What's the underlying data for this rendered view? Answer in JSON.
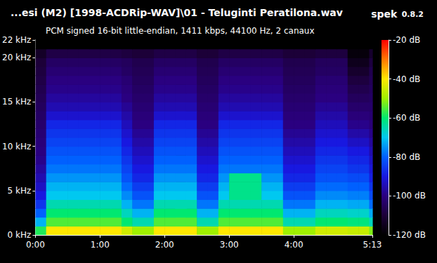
{
  "chart_data": {
    "type": "heatmap",
    "title": "...esi (M2) [1998-ACDRip-WAV]\\01 - Teluginti Peratilona.wav",
    "subtitle": "PCM signed 16-bit little-endian, 1411 kbps, 44100 Hz, 2 canaux",
    "annotations": [
      "spek",
      "0.8.2"
    ],
    "xlim": [
      0,
      313
    ],
    "xticks": [
      {
        "value": 0,
        "label": "0:00"
      },
      {
        "value": 60,
        "label": "1:00"
      },
      {
        "value": 120,
        "label": "2:00"
      },
      {
        "value": 180,
        "label": "3:00"
      },
      {
        "value": 240,
        "label": "4:00"
      },
      {
        "value": 313,
        "label": "5:13"
      }
    ],
    "ylim": [
      0,
      22
    ],
    "yticks": [
      {
        "value": 0,
        "label": "0 kHz"
      },
      {
        "value": 5,
        "label": "5 kHz"
      },
      {
        "value": 10,
        "label": "10 kHz"
      },
      {
        "value": 15,
        "label": "15 kHz"
      },
      {
        "value": 20,
        "label": "20 kHz"
      },
      {
        "value": 22,
        "label": "22 kHz"
      }
    ],
    "grid": false,
    "x_bins": [
      0,
      10,
      20,
      30,
      40,
      50,
      60,
      70,
      80,
      90,
      100,
      110,
      120,
      130,
      140,
      150,
      160,
      170,
      180,
      190,
      200,
      210,
      220,
      230,
      240,
      250,
      260,
      270,
      280,
      290,
      300,
      310,
      313
    ],
    "y_bins": [
      0,
      1,
      2,
      3,
      4,
      5,
      6,
      7,
      8,
      9,
      10,
      11,
      12,
      13,
      14,
      15,
      16,
      17,
      18,
      19,
      20,
      21,
      22
    ],
    "values": [
      [
        -58,
        -40,
        -40,
        -40,
        -40,
        -40,
        -40,
        -40,
        -45,
        -50,
        -50,
        -40,
        -40,
        -40,
        -40,
        -50,
        -50,
        -40,
        -40,
        -40,
        -40,
        -40,
        -40,
        -50,
        -50,
        -50,
        -45,
        -45,
        -45,
        -46,
        -46,
        -52
      ],
      [
        -72,
        -55,
        -55,
        -55,
        -55,
        -55,
        -55,
        -55,
        -60,
        -65,
        -65,
        -55,
        -55,
        -55,
        -55,
        -65,
        -65,
        -55,
        -55,
        -55,
        -55,
        -55,
        -55,
        -65,
        -65,
        -65,
        -60,
        -60,
        -60,
        -61,
        -61,
        -66
      ],
      [
        -80,
        -60,
        -60,
        -60,
        -60,
        -60,
        -60,
        -60,
        -66,
        -72,
        -72,
        -60,
        -60,
        -60,
        -60,
        -72,
        -72,
        -60,
        -60,
        -60,
        -60,
        -60,
        -60,
        -72,
        -72,
        -72,
        -66,
        -66,
        -66,
        -67,
        -67,
        -73
      ],
      [
        -86,
        -65,
        -65,
        -65,
        -65,
        -65,
        -65,
        -65,
        -72,
        -78,
        -78,
        -65,
        -65,
        -65,
        -65,
        -78,
        -78,
        -65,
        -65,
        -65,
        -65,
        -65,
        -65,
        -78,
        -78,
        -78,
        -72,
        -72,
        -72,
        -73,
        -73,
        -79
      ],
      [
        -90,
        -70,
        -70,
        -70,
        -70,
        -70,
        -70,
        -70,
        -76,
        -82,
        -82,
        -70,
        -70,
        -70,
        -70,
        -82,
        -82,
        -70,
        -62,
        -62,
        -62,
        -70,
        -70,
        -82,
        -82,
        -82,
        -76,
        -76,
        -76,
        -77,
        -77,
        -83
      ],
      [
        -93,
        -72,
        -72,
        -72,
        -72,
        -72,
        -72,
        -72,
        -79,
        -85,
        -85,
        -72,
        -72,
        -72,
        -72,
        -85,
        -85,
        -72,
        -62,
        -62,
        -62,
        -72,
        -72,
        -85,
        -85,
        -85,
        -79,
        -79,
        -79,
        -80,
        -80,
        -86
      ],
      [
        -95,
        -75,
        -75,
        -75,
        -75,
        -75,
        -75,
        -75,
        -82,
        -88,
        -88,
        -75,
        -75,
        -75,
        -75,
        -88,
        -88,
        -75,
        -62,
        -62,
        -62,
        -75,
        -75,
        -88,
        -88,
        -88,
        -82,
        -82,
        -82,
        -83,
        -83,
        -89
      ],
      [
        -97,
        -78,
        -78,
        -78,
        -78,
        -78,
        -78,
        -78,
        -84,
        -90,
        -90,
        -78,
        -78,
        -78,
        -78,
        -90,
        -90,
        -78,
        -78,
        -78,
        -78,
        -78,
        -78,
        -90,
        -90,
        -90,
        -84,
        -84,
        -84,
        -86,
        -86,
        -91
      ],
      [
        -99,
        -80,
        -80,
        -80,
        -80,
        -80,
        -80,
        -80,
        -86,
        -92,
        -92,
        -80,
        -80,
        -80,
        -80,
        -92,
        -92,
        -80,
        -80,
        -80,
        -80,
        -80,
        -80,
        -92,
        -92,
        -92,
        -86,
        -86,
        -86,
        -88,
        -88,
        -93
      ],
      [
        -100,
        -82,
        -82,
        -82,
        -82,
        -82,
        -82,
        -82,
        -88,
        -94,
        -94,
        -82,
        -82,
        -82,
        -82,
        -94,
        -94,
        -82,
        -82,
        -82,
        -82,
        -82,
        -82,
        -94,
        -94,
        -94,
        -88,
        -88,
        -88,
        -90,
        -90,
        -95
      ],
      [
        -101,
        -84,
        -84,
        -84,
        -84,
        -84,
        -84,
        -84,
        -90,
        -96,
        -96,
        -84,
        -84,
        -84,
        -84,
        -96,
        -96,
        -84,
        -84,
        -84,
        -84,
        -84,
        -84,
        -96,
        -96,
        -96,
        -90,
        -90,
        -90,
        -93,
        -93,
        -97
      ],
      [
        -102,
        -86,
        -86,
        -86,
        -86,
        -86,
        -86,
        -86,
        -92,
        -98,
        -98,
        -86,
        -86,
        -86,
        -86,
        -98,
        -98,
        -86,
        -86,
        -86,
        -86,
        -86,
        -86,
        -98,
        -98,
        -98,
        -92,
        -92,
        -92,
        -96,
        -96,
        -99
      ],
      [
        -103,
        -88,
        -88,
        -88,
        -88,
        -88,
        -88,
        -88,
        -94,
        -100,
        -100,
        -88,
        -88,
        -88,
        -88,
        -100,
        -100,
        -88,
        -88,
        -88,
        -88,
        -88,
        -88,
        -100,
        -100,
        -100,
        -94,
        -94,
        -94,
        -99,
        -99,
        -101
      ],
      [
        -104,
        -92,
        -92,
        -92,
        -92,
        -92,
        -92,
        -92,
        -96,
        -101,
        -101,
        -92,
        -92,
        -92,
        -92,
        -101,
        -101,
        -92,
        -92,
        -92,
        -92,
        -92,
        -92,
        -101,
        -101,
        -101,
        -96,
        -96,
        -96,
        -101,
        -101,
        -102
      ],
      [
        -105,
        -95,
        -95,
        -95,
        -95,
        -95,
        -95,
        -95,
        -98,
        -102,
        -102,
        -95,
        -95,
        -95,
        -95,
        -102,
        -102,
        -95,
        -95,
        -95,
        -95,
        -95,
        -95,
        -102,
        -102,
        -102,
        -98,
        -98,
        -98,
        -103,
        -103,
        -103
      ],
      [
        -106,
        -97,
        -97,
        -97,
        -97,
        -97,
        -97,
        -97,
        -100,
        -103,
        -103,
        -97,
        -97,
        -97,
        -97,
        -103,
        -103,
        -97,
        -97,
        -97,
        -97,
        -97,
        -97,
        -103,
        -103,
        -103,
        -100,
        -100,
        -100,
        -105,
        -105,
        -104
      ],
      [
        -107,
        -99,
        -99,
        -99,
        -99,
        -99,
        -99,
        -99,
        -101,
        -104,
        -104,
        -99,
        -99,
        -99,
        -99,
        -104,
        -104,
        -99,
        -99,
        -99,
        -99,
        -99,
        -99,
        -104,
        -104,
        -104,
        -101,
        -101,
        -101,
        -107,
        -107,
        -105
      ],
      [
        -108,
        -100,
        -100,
        -100,
        -100,
        -100,
        -100,
        -100,
        -102,
        -105,
        -105,
        -100,
        -100,
        -100,
        -100,
        -105,
        -105,
        -100,
        -100,
        -100,
        -100,
        -100,
        -100,
        -105,
        -105,
        -105,
        -102,
        -102,
        -102,
        -109,
        -109,
        -106
      ],
      [
        -109,
        -102,
        -102,
        -102,
        -102,
        -102,
        -102,
        -102,
        -104,
        -106,
        -106,
        -102,
        -102,
        -102,
        -102,
        -106,
        -106,
        -102,
        -102,
        -102,
        -102,
        -102,
        -102,
        -106,
        -106,
        -106,
        -104,
        -104,
        -104,
        -112,
        -112,
        -107
      ],
      [
        -110,
        -104,
        -104,
        -104,
        -104,
        -104,
        -104,
        -104,
        -105,
        -107,
        -107,
        -104,
        -104,
        -104,
        -104,
        -107,
        -107,
        -104,
        -104,
        -104,
        -104,
        -104,
        -104,
        -107,
        -107,
        -107,
        -105,
        -105,
        -105,
        -115,
        -115,
        -109
      ],
      [
        -113,
        -108,
        -108,
        -108,
        -108,
        -108,
        -108,
        -108,
        -109,
        -110,
        -110,
        -108,
        -108,
        -108,
        -108,
        -110,
        -110,
        -108,
        -108,
        -108,
        -108,
        -108,
        -108,
        -110,
        -110,
        -110,
        -109,
        -109,
        -109,
        -118,
        -118,
        -112
      ],
      [
        -120,
        -120,
        -120,
        -120,
        -120,
        -120,
        -120,
        -120,
        -120,
        -120,
        -120,
        -120,
        -120,
        -120,
        -120,
        -120,
        -120,
        -120,
        -120,
        -120,
        -120,
        -120,
        -120,
        -120,
        -120,
        -120,
        -120,
        -120,
        -120,
        -120,
        -120,
        -120
      ]
    ],
    "color_bar": {
      "range": [
        -120,
        -20
      ],
      "ticks": [
        {
          "value": -120,
          "label": "-120 dB"
        },
        {
          "value": -100,
          "label": "-100 dB"
        },
        {
          "value": -80,
          "label": "-80 dB"
        },
        {
          "value": -60,
          "label": "-60 dB"
        },
        {
          "value": -40,
          "label": "-40 dB"
        },
        {
          "value": -20,
          "label": "-20 dB"
        }
      ]
    }
  }
}
